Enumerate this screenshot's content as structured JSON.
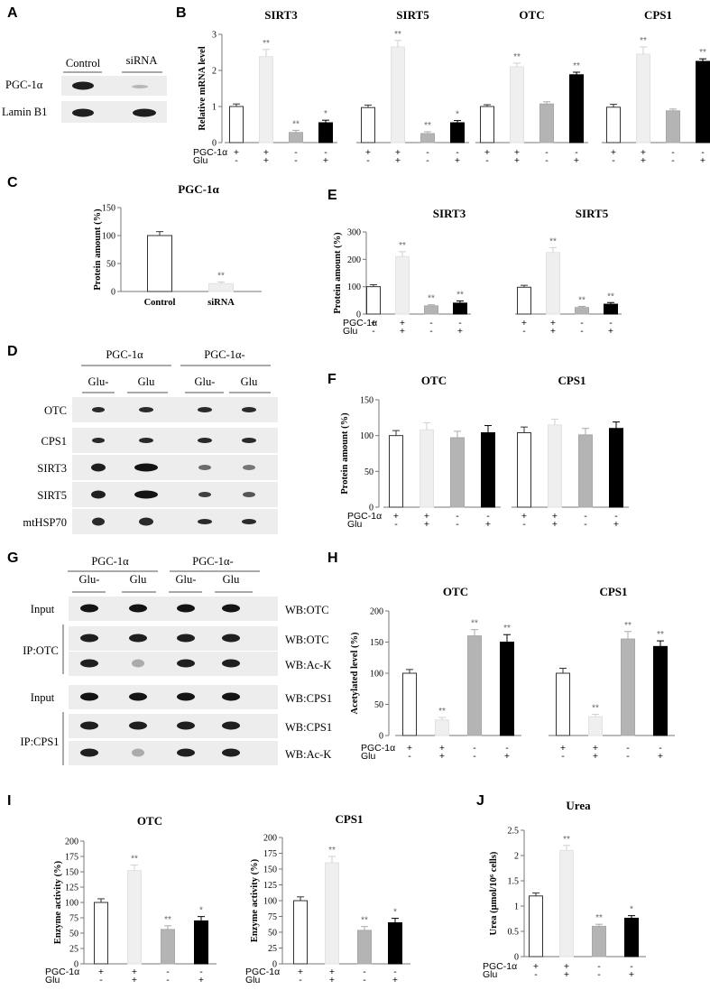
{
  "panel_letters": [
    "A",
    "B",
    "C",
    "D",
    "E",
    "F",
    "G",
    "H",
    "I",
    "J"
  ],
  "colors": {
    "bar1": "#ffffff",
    "bar2": "#efefef",
    "bar3": "#b4b4b4",
    "bar4": "#000000",
    "strip": "#ededed",
    "band": "#141414"
  },
  "conditions": {
    "row1_label": "PGC-1α",
    "row2_label": "Glu",
    "row1": [
      "+",
      "+",
      "-",
      "-"
    ],
    "row2": [
      "-",
      "+",
      "-",
      "+"
    ]
  },
  "blot_A": {
    "headers": [
      "Control",
      "siRNA"
    ],
    "rows": [
      "PGC-1α",
      "Lamin B1"
    ]
  },
  "blot_D": {
    "group_labels": [
      "PGC-1α",
      "PGC-1α-"
    ],
    "lane_labels": [
      "Glu-",
      "Glu",
      "Glu-",
      "Glu"
    ],
    "rows": [
      "OTC",
      "CPS1",
      "SIRT3",
      "SIRT5",
      "mtHSP70"
    ]
  },
  "blot_G": {
    "group_labels": [
      "PGC-1α",
      "PGC-1α-"
    ],
    "lane_labels": [
      "Glu-",
      "Glu",
      "Glu-",
      "Glu"
    ],
    "row_labels": [
      "Input",
      "IP:OTC",
      "Input",
      "IP:CPS1"
    ],
    "wb_labels": [
      "WB:OTC",
      "WB:OTC",
      "WB:Ac-K",
      "WB:CPS1",
      "WB:CPS1",
      "WB:Ac-K"
    ]
  },
  "chart_data": [
    {
      "panel": "B",
      "type": "bar",
      "ylabel": "Relative mRNA level",
      "ylim": [
        0,
        3
      ],
      "yticks": [
        0,
        1,
        2,
        3
      ],
      "series": [
        {
          "name": "SIRT3",
          "values": [
            1.0,
            2.38,
            0.28,
            0.55
          ],
          "errors": [
            0.07,
            0.2,
            0.06,
            0.07
          ],
          "stars": [
            "",
            "**",
            "**",
            "*"
          ]
        },
        {
          "name": "SIRT5",
          "values": [
            0.97,
            2.65,
            0.25,
            0.55
          ],
          "errors": [
            0.07,
            0.18,
            0.05,
            0.06
          ],
          "stars": [
            "",
            "**",
            "**",
            "*"
          ]
        },
        {
          "name": "OTC",
          "values": [
            1.0,
            2.1,
            1.07,
            1.88
          ],
          "errors": [
            0.05,
            0.1,
            0.06,
            0.07
          ],
          "stars": [
            "",
            "**",
            "",
            "**"
          ]
        },
        {
          "name": "CPS1",
          "values": [
            0.98,
            2.45,
            0.88,
            2.25
          ],
          "errors": [
            0.08,
            0.2,
            0.05,
            0.07
          ],
          "stars": [
            "",
            "**",
            "",
            "**"
          ]
        }
      ]
    },
    {
      "panel": "C",
      "type": "bar",
      "ylabel": "Protein amount (%)",
      "ylim": [
        0,
        150
      ],
      "yticks": [
        0,
        50,
        100,
        150
      ],
      "title": "PGC-1α",
      "categories": [
        "Control",
        "siRNA"
      ],
      "values": [
        100,
        14
      ],
      "errors": [
        7,
        3
      ],
      "stars": [
        "",
        "**"
      ]
    },
    {
      "panel": "E",
      "type": "bar",
      "ylabel": "Protein amount (%)",
      "ylim": [
        0,
        300
      ],
      "yticks": [
        0,
        100,
        200,
        300
      ],
      "series": [
        {
          "name": "SIRT3",
          "values": [
            100,
            210,
            30,
            40
          ],
          "errors": [
            7,
            18,
            4,
            8
          ],
          "stars": [
            "",
            "**",
            "**",
            "**"
          ]
        },
        {
          "name": "SIRT5",
          "values": [
            98,
            225,
            24,
            36
          ],
          "errors": [
            7,
            18,
            4,
            6
          ],
          "stars": [
            "",
            "**",
            "**",
            "**"
          ]
        }
      ]
    },
    {
      "panel": "F",
      "type": "bar",
      "ylabel": "Protein amount (%)",
      "ylim": [
        0,
        150
      ],
      "yticks": [
        0,
        50,
        100,
        150
      ],
      "series": [
        {
          "name": "OTC",
          "values": [
            100,
            108,
            97,
            104
          ],
          "errors": [
            7,
            10,
            9,
            10
          ],
          "stars": [
            "",
            "",
            "",
            ""
          ]
        },
        {
          "name": "CPS1",
          "values": [
            104,
            115,
            101,
            110
          ],
          "errors": [
            8,
            8,
            9,
            9
          ],
          "stars": [
            "",
            "",
            "",
            ""
          ]
        }
      ]
    },
    {
      "panel": "H",
      "type": "bar",
      "ylabel": "Acetylated level (%)",
      "ylim": [
        0,
        200
      ],
      "yticks": [
        0,
        50,
        100,
        150,
        200
      ],
      "series": [
        {
          "name": "OTC",
          "values": [
            100,
            25,
            160,
            150
          ],
          "errors": [
            6,
            4,
            10,
            12
          ],
          "stars": [
            "",
            "**",
            "**",
            "**"
          ]
        },
        {
          "name": "CPS1",
          "values": [
            100,
            30,
            155,
            143
          ],
          "errors": [
            8,
            4,
            12,
            9
          ],
          "stars": [
            "",
            "**",
            "**",
            "**"
          ]
        }
      ]
    },
    {
      "panel": "I",
      "type": "bar",
      "ylabel": "Enzyme activity (%)",
      "ylim": [
        0,
        200
      ],
      "yticks": [
        0,
        25,
        50,
        75,
        100,
        125,
        150,
        175,
        200
      ],
      "title": "OTC",
      "values": [
        100,
        152,
        56,
        70
      ],
      "errors": [
        6,
        9,
        6,
        7
      ],
      "stars": [
        "",
        "**",
        "**",
        "*"
      ]
    },
    {
      "panel": "I2",
      "type": "bar",
      "ylabel": "Enzyme activity (%)",
      "ylim": [
        0,
        200
      ],
      "yticks": [
        0,
        25,
        50,
        75,
        100,
        125,
        150,
        175,
        200
      ],
      "title": "CPS1",
      "values": [
        100,
        160,
        53,
        65
      ],
      "errors": [
        6,
        10,
        6,
        7
      ],
      "stars": [
        "",
        "**",
        "**",
        "*"
      ]
    },
    {
      "panel": "J",
      "type": "bar",
      "ylabel": "Urea (μmol/10⁶ cells)",
      "ylim": [
        0,
        2.5
      ],
      "yticks": [
        0,
        0.5,
        1,
        1.5,
        2,
        2.5
      ],
      "title": "Urea",
      "values": [
        1.2,
        2.1,
        0.6,
        0.76
      ],
      "errors": [
        0.06,
        0.1,
        0.04,
        0.05
      ],
      "stars": [
        "",
        "**",
        "**",
        "*"
      ]
    }
  ]
}
